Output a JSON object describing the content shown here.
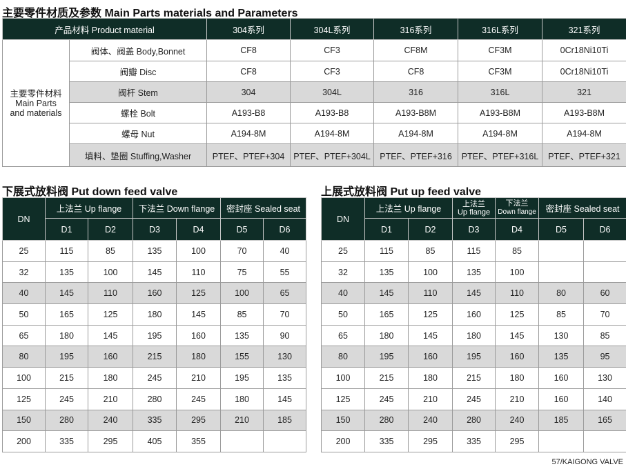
{
  "materials": {
    "title": "主要零件材质及参数 Main Parts materials and Parameters",
    "header": [
      "产品材料 Product material",
      "304系列",
      "304L系列",
      "316系列",
      "316L系列",
      "321系列"
    ],
    "group_label": [
      "主要零件材料",
      "Main Parts",
      "and materials"
    ],
    "rows": [
      {
        "part": "阀体、阀盖 Body,Bonnet",
        "values": [
          "CF8",
          "CF3",
          "CF8M",
          "CF3M",
          "0Cr18Ni10Ti"
        ],
        "shaded": false
      },
      {
        "part": "阀瓣 Disc",
        "values": [
          "CF8",
          "CF3",
          "CF8",
          "CF3M",
          "0Cr18Ni10Ti"
        ],
        "shaded": false
      },
      {
        "part": "阀杆 Stem",
        "values": [
          "304",
          "304L",
          "316",
          "316L",
          "321"
        ],
        "shaded": true
      },
      {
        "part": "螺栓 Bolt",
        "values": [
          "A193-B8",
          "A193-B8",
          "A193-B8M",
          "A193-B8M",
          "A193-B8M"
        ],
        "shaded": false
      },
      {
        "part": "螺母 Nut",
        "values": [
          "A194-8M",
          "A194-8M",
          "A194-8M",
          "A194-8M",
          "A194-8M"
        ],
        "shaded": false
      },
      {
        "part": "填料、垫圈 Stuffing,Washer",
        "values": [
          "PTEF、PTEF+304",
          "PTEF、PTEF+304L",
          "PTEF、PTEF+316",
          "PTEF、PTEF+316L",
          "PTEF、PTEF+321"
        ],
        "shaded": true
      }
    ]
  },
  "down_valve": {
    "title": "下展式放料阀  Put down feed valve",
    "groups": [
      "DN",
      "上法兰 Up flange",
      "下法兰 Down flange",
      "密封座 Sealed seat"
    ],
    "cols": [
      "D1",
      "D2",
      "D3",
      "D4",
      "D5",
      "D6"
    ],
    "rows": [
      [
        "25",
        "115",
        "85",
        "135",
        "100",
        "70",
        "40"
      ],
      [
        "32",
        "135",
        "100",
        "145",
        "110",
        "75",
        "55"
      ],
      [
        "40",
        "145",
        "110",
        "160",
        "125",
        "100",
        "65"
      ],
      [
        "50",
        "165",
        "125",
        "180",
        "145",
        "85",
        "70"
      ],
      [
        "65",
        "180",
        "145",
        "195",
        "160",
        "135",
        "90"
      ],
      [
        "80",
        "195",
        "160",
        "215",
        "180",
        "155",
        "130"
      ],
      [
        "100",
        "215",
        "180",
        "245",
        "210",
        "195",
        "135"
      ],
      [
        "125",
        "245",
        "210",
        "280",
        "245",
        "180",
        "145"
      ],
      [
        "150",
        "280",
        "240",
        "335",
        "295",
        "210",
        "185"
      ],
      [
        "200",
        "335",
        "295",
        "405",
        "355",
        "",
        ""
      ]
    ]
  },
  "up_valve": {
    "title": "上展式放料阀  Put up feed valve",
    "groups": [
      "DN",
      "上法兰 Up flange",
      "上法兰",
      "Up flange",
      "下法兰",
      "Down flange",
      "密封座 Sealed seat"
    ],
    "cols": [
      "D1",
      "D2",
      "D3",
      "D4",
      "D5",
      "D6"
    ],
    "rows": [
      [
        "25",
        "115",
        "85",
        "115",
        "85",
        "",
        ""
      ],
      [
        "32",
        "135",
        "100",
        "135",
        "100",
        "",
        ""
      ],
      [
        "40",
        "145",
        "110",
        "145",
        "110",
        "80",
        "60"
      ],
      [
        "50",
        "165",
        "125",
        "160",
        "125",
        "85",
        "70"
      ],
      [
        "65",
        "180",
        "145",
        "180",
        "145",
        "130",
        "85"
      ],
      [
        "80",
        "195",
        "160",
        "195",
        "160",
        "135",
        "95"
      ],
      [
        "100",
        "215",
        "180",
        "215",
        "180",
        "160",
        "130"
      ],
      [
        "125",
        "245",
        "210",
        "245",
        "210",
        "160",
        "140"
      ],
      [
        "150",
        "280",
        "240",
        "280",
        "240",
        "185",
        "165"
      ],
      [
        "200",
        "335",
        "295",
        "335",
        "295",
        "",
        ""
      ]
    ]
  },
  "shaded_rows": [
    2,
    5,
    8
  ],
  "colors": {
    "header": "#0f2d27",
    "shade": "#d9d9d9"
  },
  "footer": "57/KAIGONG VALVE"
}
